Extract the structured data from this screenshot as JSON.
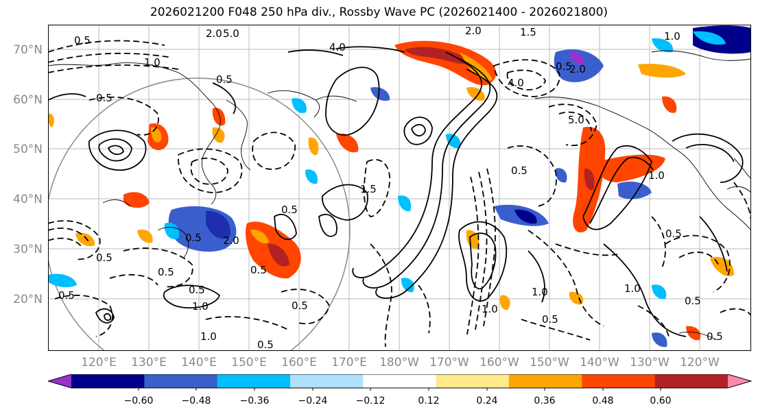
{
  "title": "2026021200 F048 250 hPa div., Rossby Wave PC (2026021400 - 2026021800)",
  "lat_labels": [
    "70°N",
    "60°N",
    "50°N",
    "40°N",
    "30°N",
    "20°N"
  ],
  "lon_labels": [
    "120°E",
    "130°E",
    "140°E",
    "150°E",
    "160°E",
    "170°E",
    "180°W",
    "170°W",
    "160°W",
    "150°W",
    "140°W",
    "130°W",
    "120°W"
  ],
  "colorbar": {
    "colors": [
      "#9932cc",
      "#00008b",
      "#3a5fcd",
      "#00bfff",
      "#b0e2ff",
      "#ffffff",
      "#ffe98a",
      "#ffa500",
      "#ff4500",
      "#b22222",
      "#ff88aa"
    ],
    "tick_labels": [
      "−0.60",
      "−0.48",
      "−0.36",
      "−0.24",
      "−0.12",
      "0.12",
      "0.24",
      "0.36",
      "0.48",
      "0.60"
    ]
  },
  "contour_labels": [
    "0.5",
    "1.0",
    "1.5",
    "2.0",
    "4.0",
    "5.0"
  ]
}
